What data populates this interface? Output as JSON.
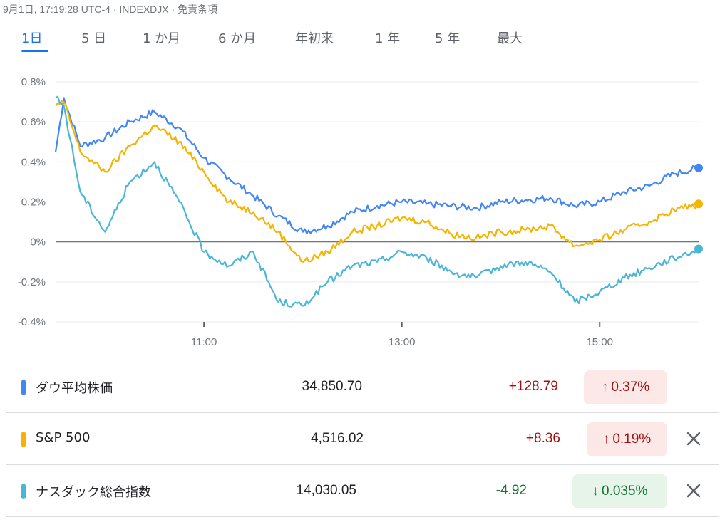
{
  "header": {
    "text": "9月1日, 17:19:28 UTC-4 · INDEXDJX · 免責条項"
  },
  "tabs": [
    {
      "label": "1日",
      "active": true
    },
    {
      "label": "5 日"
    },
    {
      "label": "1 か月"
    },
    {
      "label": "6 か月"
    },
    {
      "label": "年初来"
    },
    {
      "label": "1 年"
    },
    {
      "label": "5 年"
    },
    {
      "label": "最大"
    }
  ],
  "chart_data": {
    "type": "line",
    "ylabel": "",
    "xlabel": "",
    "y_ticks": [
      "0.8%",
      "0.6%",
      "0.4%",
      "0.2%",
      "0%",
      "-0.2%",
      "-0.4%"
    ],
    "x_ticks": [
      "11:00",
      "13:00",
      "15:00"
    ],
    "ylim": [
      -0.4,
      0.8
    ],
    "xlim": [
      "09:30",
      "16:00"
    ],
    "series": [
      {
        "name": "ダウ平均株価",
        "color": "#4285f4",
        "x": [
          "09:30",
          "09:35",
          "09:45",
          "10:00",
          "10:15",
          "10:30",
          "10:45",
          "11:00",
          "11:15",
          "11:30",
          "11:45",
          "12:00",
          "12:15",
          "12:30",
          "12:45",
          "13:00",
          "13:15",
          "13:30",
          "13:45",
          "14:00",
          "14:15",
          "14:30",
          "14:45",
          "15:00",
          "15:15",
          "15:30",
          "15:45",
          "16:00"
        ],
        "values": [
          0.45,
          0.72,
          0.48,
          0.52,
          0.6,
          0.65,
          0.57,
          0.42,
          0.32,
          0.23,
          0.13,
          0.05,
          0.08,
          0.15,
          0.18,
          0.2,
          0.19,
          0.18,
          0.17,
          0.2,
          0.21,
          0.22,
          0.18,
          0.2,
          0.25,
          0.28,
          0.34,
          0.37
        ]
      },
      {
        "name": "S&P 500",
        "color": "#f4b400",
        "x": [
          "09:30",
          "09:35",
          "09:45",
          "10:00",
          "10:15",
          "10:30",
          "10:45",
          "11:00",
          "11:15",
          "11:30",
          "11:45",
          "12:00",
          "12:15",
          "12:30",
          "12:45",
          "13:00",
          "13:15",
          "13:30",
          "13:45",
          "14:00",
          "14:15",
          "14:30",
          "14:45",
          "15:00",
          "15:15",
          "15:30",
          "15:45",
          "16:00"
        ],
        "values": [
          0.68,
          0.7,
          0.45,
          0.35,
          0.48,
          0.58,
          0.5,
          0.35,
          0.2,
          0.15,
          0.05,
          -0.1,
          -0.05,
          0.05,
          0.08,
          0.12,
          0.1,
          0.04,
          0.02,
          0.05,
          0.06,
          0.08,
          -0.02,
          0.01,
          0.06,
          0.1,
          0.16,
          0.19
        ]
      },
      {
        "name": "ナスダック総合指数",
        "color": "#4ab6d6",
        "x": [
          "09:30",
          "09:35",
          "09:45",
          "10:00",
          "10:15",
          "10:30",
          "10:45",
          "11:00",
          "11:15",
          "11:30",
          "11:45",
          "12:00",
          "12:15",
          "12:30",
          "12:45",
          "13:00",
          "13:15",
          "13:30",
          "13:45",
          "14:00",
          "14:15",
          "14:30",
          "14:45",
          "15:00",
          "15:15",
          "15:30",
          "15:45",
          "16:00"
        ],
        "values": [
          0.72,
          0.68,
          0.25,
          0.05,
          0.3,
          0.4,
          0.2,
          -0.05,
          -0.12,
          -0.05,
          -0.3,
          -0.32,
          -0.2,
          -0.12,
          -0.1,
          -0.05,
          -0.08,
          -0.15,
          -0.18,
          -0.12,
          -0.1,
          -0.15,
          -0.3,
          -0.25,
          -0.18,
          -0.13,
          -0.08,
          -0.035
        ]
      }
    ]
  },
  "rows": [
    {
      "name": "ダウ平均株価",
      "color": "#4285f4",
      "price": "34,850.70",
      "change": "+128.79",
      "pct": "0.37%",
      "arrow": "↑",
      "direction": "up",
      "removable": false
    },
    {
      "name": "S&P 500",
      "color": "#f4b400",
      "price": "4,516.02",
      "change": "+8.36",
      "pct": "0.19%",
      "arrow": "↑",
      "direction": "up",
      "removable": true
    },
    {
      "name": "ナスダック総合指数",
      "color": "#4ab6d6",
      "price": "14,030.05",
      "change": "-4.92",
      "pct": "0.035%",
      "arrow": "↓",
      "direction": "down",
      "removable": true
    }
  ],
  "colors": {
    "up_text": "#a50e0e",
    "up_bg": "#fce8e6",
    "down_text": "#137333",
    "down_bg": "#e6f4ea",
    "accent": "#1a73e8"
  }
}
